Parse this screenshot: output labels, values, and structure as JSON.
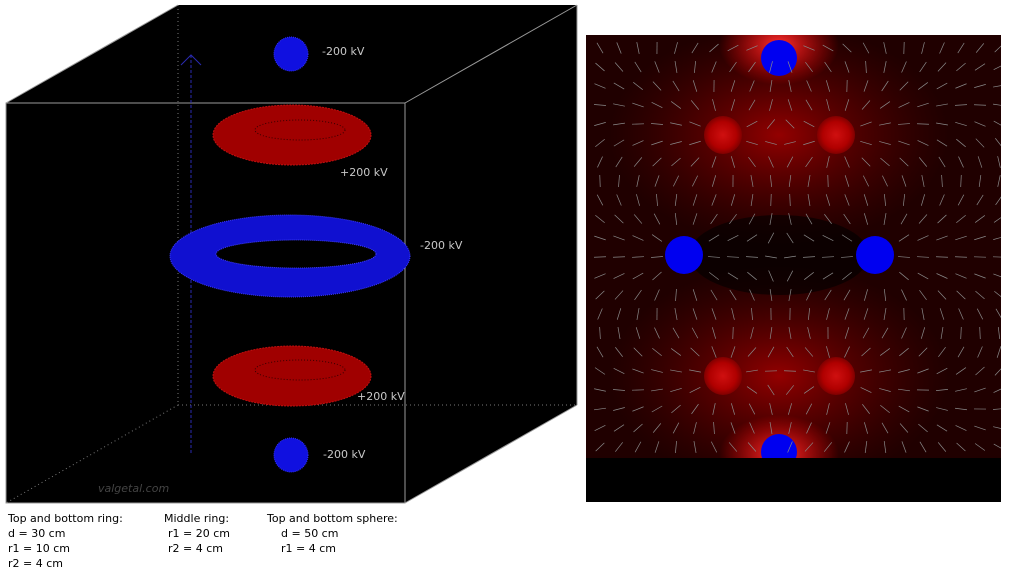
{
  "labels": {
    "top_sphere": "-200 kV",
    "top_ring": "+200 kV",
    "middle_ring": "-200 kV",
    "bottom_ring": "+200 kV",
    "bottom_sphere": "-200 kV",
    "watermark": "valgetal.com"
  },
  "captions": [
    {
      "title": "Top and bottom ring:",
      "lines": [
        "d = 30 cm",
        "r1 = 10 cm",
        "r2 = 4 cm"
      ]
    },
    {
      "title": "Middle ring:",
      "lines": [
        "r1 = 20 cm",
        "r2 = 4 cm"
      ]
    },
    {
      "title": "Top and bottom sphere:",
      "lines": [
        "d = 50 cm",
        "r1 = 4 cm"
      ]
    }
  ]
}
